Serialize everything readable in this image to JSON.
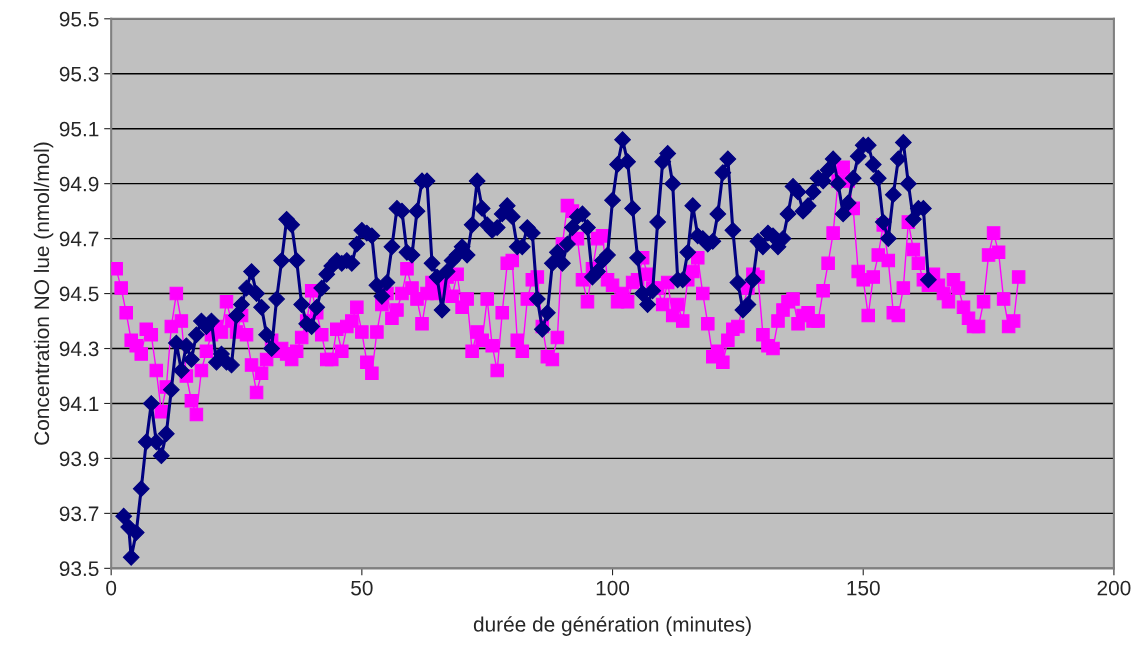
{
  "chart_data": {
    "type": "line",
    "xlabel": "durée de génération (minutes)",
    "ylabel": "Concentration NO lue (nmol/mol)",
    "xlim": [
      0,
      200
    ],
    "xticks": [
      0,
      50,
      100,
      150,
      200
    ],
    "ylim": [
      93.5,
      95.5
    ],
    "yticks": [
      {
        "value": 93.5,
        "label": "93.5"
      },
      {
        "value": 93.7,
        "label": "93.7"
      },
      {
        "value": 93.9,
        "label": "93.9"
      },
      {
        "value": 94.1,
        "label": "94.1"
      },
      {
        "value": 94.3,
        "label": "94.3"
      },
      {
        "value": 94.5,
        "label": "94.5"
      },
      {
        "value": 94.7,
        "label": "94.7"
      },
      {
        "value": 94.9,
        "label": "94.9"
      },
      {
        "value": 95.1,
        "label": "95.1"
      },
      {
        "value": 95.3,
        "label": "95.3"
      },
      {
        "value": 95.5,
        "label": "95.5"
      }
    ],
    "grid": "y",
    "series": [
      {
        "color": "#000080",
        "marker": "diamond",
        "x": [
          2.5,
          3.5,
          4,
          5,
          6,
          7,
          8,
          9,
          10,
          11,
          12,
          13,
          14,
          15,
          16,
          17,
          18,
          19,
          20,
          21,
          22,
          23,
          24,
          25,
          26,
          27,
          28,
          29,
          30,
          31,
          32,
          33,
          34,
          35,
          36,
          37,
          38,
          39,
          40,
          41,
          42,
          43,
          44,
          45,
          46,
          47,
          48,
          49,
          50,
          51,
          52,
          53,
          54,
          55,
          56,
          57,
          58,
          59,
          60,
          61,
          62,
          63,
          64,
          65,
          66,
          67,
          68,
          69,
          70,
          71,
          72,
          73,
          74,
          75,
          76,
          77,
          78,
          79,
          80,
          81,
          82,
          83,
          84,
          85,
          86,
          87,
          88,
          89,
          90,
          91,
          92,
          93,
          94,
          95,
          96,
          97,
          98,
          99,
          100,
          101,
          102,
          103,
          104,
          105,
          106,
          107,
          108,
          109,
          110,
          111,
          112,
          113,
          114,
          115,
          116,
          117,
          118,
          119,
          120,
          121,
          122,
          123,
          124,
          125,
          126,
          127,
          128,
          129,
          130,
          131,
          132,
          133,
          134,
          135,
          136,
          137,
          138,
          139,
          140,
          141,
          142,
          143,
          144,
          145,
          146,
          147,
          148,
          149,
          150,
          151,
          152,
          153,
          154,
          155,
          156,
          157,
          158,
          159,
          160,
          161,
          162,
          163
        ],
        "values": [
          93.69,
          93.65,
          93.54,
          93.63,
          93.79,
          93.96,
          94.1,
          93.96,
          93.91,
          93.99,
          94.15,
          94.32,
          94.22,
          94.31,
          94.26,
          94.35,
          94.4,
          94.38,
          94.4,
          94.25,
          94.28,
          94.25,
          94.24,
          94.42,
          94.46,
          94.52,
          94.58,
          94.5,
          94.45,
          94.35,
          94.3,
          94.48,
          94.62,
          94.77,
          94.75,
          94.62,
          94.46,
          94.39,
          94.38,
          94.45,
          94.52,
          94.57,
          94.6,
          94.62,
          94.61,
          94.62,
          94.61,
          94.68,
          94.73,
          94.72,
          94.71,
          94.53,
          94.49,
          94.54,
          94.67,
          94.81,
          94.8,
          94.65,
          94.64,
          94.8,
          94.91,
          94.91,
          94.61,
          94.56,
          94.44,
          94.58,
          94.62,
          94.64,
          94.67,
          94.64,
          94.75,
          94.91,
          94.81,
          94.75,
          94.73,
          94.74,
          94.79,
          94.82,
          94.78,
          94.67,
          94.67,
          94.74,
          94.72,
          94.48,
          94.37,
          94.43,
          94.61,
          94.65,
          94.61,
          94.68,
          94.74,
          94.78,
          94.79,
          94.74,
          94.56,
          94.58,
          94.62,
          94.64,
          94.84,
          94.97,
          95.06,
          94.98,
          94.81,
          94.63,
          94.5,
          94.46,
          94.51,
          94.76,
          94.98,
          95.01,
          94.9,
          94.55,
          94.55,
          94.65,
          94.82,
          94.71,
          94.7,
          94.68,
          94.69,
          94.79,
          94.94,
          94.99,
          94.73,
          94.54,
          94.44,
          94.46,
          94.55,
          94.69,
          94.67,
          94.72,
          94.71,
          94.67,
          94.7,
          94.79,
          94.89,
          94.87,
          94.8,
          94.82,
          94.87,
          94.92,
          94.91,
          94.95,
          94.99,
          94.9,
          94.79,
          94.83,
          94.92,
          95.0,
          95.04,
          95.04,
          94.97,
          94.92,
          94.76,
          94.7,
          94.86,
          94.99,
          95.05,
          94.9,
          94.77,
          94.81,
          94.81,
          94.55
        ]
      },
      {
        "color": "#ff00ff",
        "marker": "square",
        "x": [
          1,
          2,
          3,
          4,
          5,
          6,
          7,
          8,
          9,
          10,
          11,
          12,
          13,
          14,
          15,
          16,
          17,
          18,
          19,
          20,
          21,
          22,
          23,
          24,
          25,
          26,
          27,
          28,
          29,
          30,
          31,
          32,
          33,
          34,
          35,
          36,
          37,
          38,
          39,
          40,
          41,
          42,
          43,
          44,
          45,
          46,
          47,
          48,
          49,
          50,
          51,
          52,
          53,
          54,
          55,
          56,
          57,
          58,
          59,
          60,
          61,
          62,
          63,
          64,
          65,
          66,
          67,
          68,
          69,
          70,
          71,
          72,
          73,
          74,
          75,
          76,
          77,
          78,
          79,
          80,
          81,
          82,
          83,
          84,
          85,
          86,
          87,
          88,
          89,
          90,
          91,
          92,
          93,
          94,
          95,
          96,
          97,
          98,
          99,
          100,
          101,
          102,
          103,
          104,
          105,
          106,
          107,
          108,
          109,
          110,
          111,
          112,
          113,
          114,
          115,
          116,
          117,
          118,
          119,
          120,
          121,
          122,
          123,
          124,
          125,
          126,
          127,
          128,
          129,
          130,
          131,
          132,
          133,
          134,
          135,
          136,
          137,
          138,
          139,
          140,
          141,
          142,
          143,
          144,
          145,
          146,
          147,
          148,
          149,
          150,
          151,
          152,
          153,
          154,
          155,
          156,
          157,
          158,
          159,
          160,
          161,
          162,
          163,
          164,
          165,
          166,
          167,
          168,
          169,
          170,
          171,
          172,
          173,
          174,
          175,
          176,
          177,
          178,
          179,
          180,
          181
        ],
        "values": [
          94.59,
          94.52,
          94.43,
          94.33,
          94.31,
          94.28,
          94.37,
          94.35,
          94.22,
          94.07,
          94.16,
          94.38,
          94.5,
          94.4,
          94.2,
          94.11,
          94.06,
          94.22,
          94.29,
          94.35,
          94.38,
          94.36,
          94.47,
          94.4,
          94.36,
          94.42,
          94.35,
          94.24,
          94.14,
          94.21,
          94.26,
          94.33,
          94.29,
          94.3,
          94.28,
          94.26,
          94.29,
          94.34,
          94.4,
          94.51,
          94.43,
          94.35,
          94.26,
          94.26,
          94.37,
          94.29,
          94.38,
          94.4,
          94.45,
          94.36,
          94.25,
          94.21,
          94.36,
          94.46,
          94.5,
          94.41,
          94.44,
          94.5,
          94.59,
          94.52,
          94.48,
          94.39,
          94.5,
          94.54,
          94.5,
          94.52,
          94.56,
          94.49,
          94.57,
          94.45,
          94.48,
          94.29,
          94.36,
          94.33,
          94.48,
          94.31,
          94.22,
          94.43,
          94.61,
          94.62,
          94.33,
          94.29,
          94.48,
          94.55,
          94.56,
          94.38,
          94.27,
          94.26,
          94.34,
          94.68,
          94.82,
          94.8,
          94.7,
          94.55,
          94.47,
          94.59,
          94.7,
          94.71,
          94.55,
          94.53,
          94.47,
          94.5,
          94.47,
          94.54,
          94.55,
          94.63,
          94.57,
          94.52,
          94.52,
          94.46,
          94.54,
          94.42,
          94.46,
          94.4,
          94.55,
          94.58,
          94.63,
          94.5,
          94.39,
          94.27,
          94.29,
          94.25,
          94.33,
          94.37,
          94.38,
          null,
          94.52,
          94.57,
          94.56,
          94.35,
          94.31,
          94.3,
          94.4,
          94.44,
          94.47,
          94.48,
          94.39,
          94.42,
          94.43,
          94.4,
          94.4,
          94.51,
          94.61,
          94.72,
          94.91,
          94.96,
          94.91,
          94.81,
          94.58,
          94.55,
          94.42,
          94.56,
          94.64,
          94.75,
          94.62,
          94.43,
          94.42,
          94.52,
          94.76,
          94.66,
          94.61,
          94.55,
          94.53,
          94.57,
          94.53,
          94.5,
          94.47,
          94.55,
          94.52,
          94.45,
          94.41,
          94.38,
          94.38,
          94.47,
          94.64,
          94.72,
          94.65,
          94.48,
          94.38,
          94.4,
          94.56
        ]
      }
    ]
  }
}
